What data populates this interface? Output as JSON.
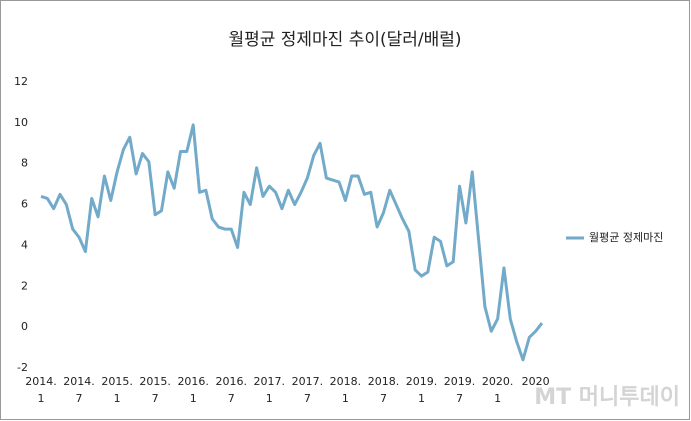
{
  "chart_data": {
    "type": "line",
    "title": "월평균 정제마진 추이(달러/배럴)",
    "categories": [
      "2014.\n1",
      null,
      null,
      null,
      null,
      null,
      "2014.\n7",
      null,
      null,
      null,
      null,
      null,
      "2015.\n1",
      null,
      null,
      null,
      null,
      null,
      "2015.\n7",
      null,
      null,
      null,
      null,
      null,
      "2016.\n1",
      null,
      null,
      null,
      null,
      null,
      "2016.\n7",
      null,
      null,
      null,
      null,
      null,
      "2017.\n1",
      null,
      null,
      null,
      null,
      null,
      "2017.\n7",
      null,
      null,
      null,
      null,
      null,
      "2018.\n1",
      null,
      null,
      null,
      null,
      null,
      "2018.\n7",
      null,
      null,
      null,
      null,
      null,
      "2019.\n1",
      null,
      null,
      null,
      null,
      null,
      "2019.\n7",
      null,
      null,
      null,
      null,
      null,
      "2020.\n1",
      null,
      null,
      null,
      null,
      null,
      "2020",
      null
    ],
    "series": [
      {
        "name": "월평균 정제마진",
        "color": "#72aac9",
        "values": [
          6.4,
          6.3,
          5.8,
          6.5,
          6.0,
          4.8,
          4.4,
          3.7,
          6.3,
          5.4,
          7.4,
          6.2,
          7.6,
          8.7,
          9.3,
          7.5,
          8.5,
          8.1,
          5.5,
          5.7,
          7.6,
          6.8,
          8.6,
          8.6,
          9.9,
          6.6,
          6.7,
          5.3,
          4.9,
          4.8,
          4.8,
          3.9,
          6.6,
          6.0,
          7.8,
          6.4,
          6.9,
          6.6,
          5.8,
          6.7,
          6.0,
          6.6,
          7.3,
          8.4,
          9.0,
          7.3,
          7.2,
          7.1,
          6.2,
          7.4,
          7.4,
          6.5,
          6.6,
          4.9,
          5.6,
          6.7,
          6.0,
          5.3,
          4.7,
          2.8,
          2.5,
          2.7,
          4.4,
          4.2,
          3.0,
          3.2,
          6.9,
          5.1,
          7.6,
          4.3,
          1.0,
          -0.2,
          0.4,
          2.9,
          0.4,
          -0.7,
          -1.6,
          -0.5,
          -0.2,
          0.2
        ]
      }
    ],
    "ylim": [
      -2,
      12
    ],
    "yticks": [
      -2,
      0,
      2,
      4,
      6,
      8,
      10,
      12
    ],
    "grid": false,
    "legend": "right"
  },
  "watermark": "MT 머니투데이"
}
